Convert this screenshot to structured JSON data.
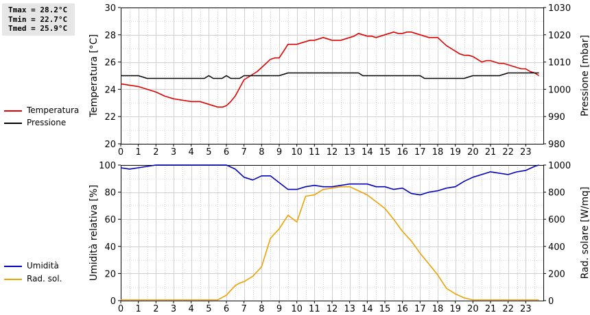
{
  "stats": {
    "tmax": "Tmax = 28.2°C",
    "tmin": "Tmin = 22.7°C",
    "tmed": "Tmed = 25.9°C"
  },
  "legend_top": [
    {
      "label": "Temperatura",
      "color": "#e00000"
    },
    {
      "label": "Pressione",
      "color": "#000000"
    }
  ],
  "legend_bottom": [
    {
      "label": "Umidità",
      "color": "#0000c0"
    },
    {
      "label": "Rad. sol.",
      "color": "#f0a000"
    }
  ],
  "chart_data": [
    {
      "type": "line",
      "ylabel": "Temperatura [°C]",
      "y2label": "Pressione [mbar]",
      "xlim": [
        0,
        24
      ],
      "ylim": [
        20,
        30
      ],
      "y2lim": [
        980,
        1030
      ],
      "yticks": [
        20,
        22,
        24,
        26,
        28,
        30
      ],
      "y2ticks": [
        980,
        990,
        1000,
        1010,
        1020,
        1030
      ],
      "xticks": [
        "0",
        "1",
        "2",
        "3",
        "4",
        "5",
        "6",
        "7",
        "8",
        "9",
        "10",
        "11",
        "12",
        "13",
        "14",
        "15",
        "16",
        "17",
        "18",
        "19",
        "20",
        "21",
        "22",
        "23"
      ],
      "grid": true,
      "series": [
        {
          "name": "Temperatura",
          "axis": "left",
          "color": "#e00000",
          "x": [
            0,
            0.5,
            1,
            1.5,
            2,
            2.5,
            3,
            3.5,
            4,
            4.5,
            5,
            5.5,
            5.8,
            6,
            6.25,
            6.5,
            6.75,
            7,
            7.25,
            7.5,
            7.75,
            8,
            8.25,
            8.5,
            8.75,
            9,
            9.25,
            9.5,
            9.75,
            10,
            10.25,
            10.5,
            10.75,
            11,
            11.25,
            11.5,
            11.75,
            12,
            12.25,
            12.5,
            12.75,
            13,
            13.25,
            13.5,
            13.75,
            14,
            14.25,
            14.5,
            14.75,
            15,
            15.25,
            15.5,
            15.75,
            16,
            16.25,
            16.5,
            16.75,
            17,
            17.25,
            17.5,
            17.75,
            18,
            18.25,
            18.5,
            18.75,
            19,
            19.25,
            19.5,
            19.75,
            20,
            20.25,
            20.5,
            20.75,
            21,
            21.25,
            21.5,
            21.75,
            22,
            22.25,
            22.5,
            22.75,
            23,
            23.25,
            23.5,
            23.75
          ],
          "values": [
            24.4,
            24.3,
            24.2,
            24.0,
            23.8,
            23.5,
            23.3,
            23.2,
            23.1,
            23.1,
            22.9,
            22.7,
            22.7,
            22.8,
            23.1,
            23.5,
            24.1,
            24.7,
            24.9,
            25.1,
            25.3,
            25.6,
            25.9,
            26.2,
            26.3,
            26.3,
            26.8,
            27.3,
            27.3,
            27.3,
            27.4,
            27.5,
            27.6,
            27.6,
            27.7,
            27.8,
            27.7,
            27.6,
            27.6,
            27.6,
            27.7,
            27.8,
            27.9,
            28.1,
            28.0,
            27.9,
            27.9,
            27.8,
            27.9,
            28.0,
            28.1,
            28.2,
            28.1,
            28.1,
            28.2,
            28.2,
            28.1,
            28.0,
            27.9,
            27.8,
            27.8,
            27.8,
            27.5,
            27.2,
            27.0,
            26.8,
            26.6,
            26.5,
            26.5,
            26.4,
            26.2,
            26.0,
            26.1,
            26.1,
            26.0,
            25.9,
            25.9,
            25.8,
            25.7,
            25.6,
            25.5,
            25.5,
            25.3,
            25.2,
            25.0
          ]
        },
        {
          "name": "Pressione",
          "axis": "right",
          "color": "#000000",
          "x": [
            0,
            1,
            1.5,
            2,
            4.75,
            5,
            5.25,
            5.5,
            5.75,
            6,
            6.25,
            6.5,
            6.75,
            7,
            9,
            9.5,
            10,
            13.5,
            13.75,
            14,
            17,
            17.25,
            19.5,
            20,
            21.5,
            22,
            23.75
          ],
          "values": [
            1005,
            1005,
            1004,
            1004,
            1004,
            1005,
            1004,
            1004,
            1004,
            1005,
            1004,
            1004,
            1004,
            1005,
            1005,
            1006,
            1006,
            1006,
            1005,
            1005,
            1005,
            1004,
            1004,
            1005,
            1005,
            1006,
            1006
          ]
        }
      ]
    },
    {
      "type": "line",
      "ylabel": "Umidità relativa [%]",
      "y2label": "Rad. solare [W/mq]",
      "xlim": [
        0,
        24
      ],
      "ylim": [
        0,
        100
      ],
      "y2lim": [
        0,
        1000
      ],
      "yticks": [
        0,
        20,
        40,
        60,
        80,
        100
      ],
      "y2ticks": [
        0,
        200,
        400,
        600,
        800,
        1000
      ],
      "xticks": [
        "0",
        "1",
        "2",
        "3",
        "4",
        "5",
        "6",
        "7",
        "8",
        "9",
        "10",
        "11",
        "12",
        "13",
        "14",
        "15",
        "16",
        "17",
        "18",
        "19",
        "20",
        "21",
        "22",
        "23"
      ],
      "grid": true,
      "series": [
        {
          "name": "Umidità",
          "axis": "left",
          "color": "#0000c0",
          "x": [
            0,
            0.5,
            1,
            1.5,
            2,
            2.5,
            3,
            3.5,
            4,
            4.5,
            5,
            5.5,
            6,
            6.5,
            7,
            7.5,
            8,
            8.5,
            9,
            9.5,
            10,
            10.5,
            11,
            11.5,
            12,
            12.5,
            13,
            13.5,
            14,
            14.5,
            15,
            15.5,
            16,
            16.5,
            17,
            17.5,
            18,
            18.5,
            19,
            19.5,
            20,
            20.5,
            21,
            21.5,
            22,
            22.5,
            23,
            23.5,
            23.75
          ],
          "values": [
            98,
            97,
            98,
            99,
            100,
            100,
            100,
            100,
            100,
            100,
            100,
            100,
            100,
            97,
            91,
            89,
            92,
            92,
            87,
            82,
            82,
            84,
            85,
            84,
            84,
            85,
            86,
            86,
            86,
            84,
            84,
            82,
            83,
            79,
            78,
            80,
            81,
            83,
            84,
            88,
            91,
            93,
            95,
            94,
            93,
            95,
            96,
            99,
            100
          ]
        },
        {
          "name": "Rad. sol.",
          "axis": "right",
          "color": "#f0a000",
          "x": [
            0,
            0.5,
            1,
            1.5,
            2,
            2.5,
            3,
            3.5,
            4,
            4.5,
            5,
            5.5,
            6,
            6.5,
            6.75,
            7,
            7.5,
            8,
            8.5,
            9,
            9.5,
            10,
            10.5,
            11,
            11.5,
            12,
            12.5,
            13,
            13.5,
            14,
            14.5,
            15,
            15.5,
            16,
            16.5,
            17,
            17.5,
            18,
            18.5,
            19,
            19.5,
            20,
            20.5,
            21,
            21.5,
            22,
            22.5,
            23,
            23.5,
            23.75
          ],
          "values": [
            5,
            5,
            5,
            5,
            5,
            5,
            5,
            5,
            5,
            5,
            5,
            5,
            40,
            110,
            130,
            140,
            180,
            250,
            460,
            530,
            630,
            580,
            770,
            780,
            820,
            830,
            840,
            840,
            810,
            780,
            730,
            680,
            600,
            510,
            440,
            350,
            270,
            190,
            90,
            50,
            20,
            5,
            5,
            5,
            5,
            5,
            5,
            5,
            5,
            5
          ]
        }
      ]
    }
  ]
}
